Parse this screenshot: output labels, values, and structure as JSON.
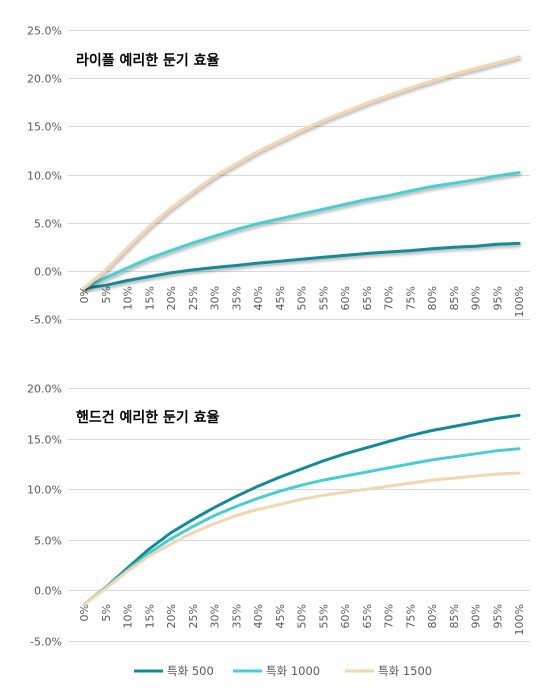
{
  "chart_data": [
    {
      "type": "line",
      "title": "라이플 예리한 둔기 효율",
      "categories": [
        "0%",
        "5%",
        "10%",
        "15%",
        "20%",
        "25%",
        "30%",
        "35%",
        "40%",
        "45%",
        "50%",
        "55%",
        "60%",
        "65%",
        "70%",
        "75%",
        "80%",
        "85%",
        "90%",
        "95%",
        "100%"
      ],
      "yticks": [
        "25.0%",
        "20.0%",
        "15.0%",
        "10.0%",
        "5.0%",
        "0.0%",
        "-5.0%"
      ],
      "ylim": [
        -5,
        25
      ],
      "grid": true,
      "series": [
        {
          "name": "특화 500",
          "color": "#138A97",
          "values": [
            -1.8,
            -1.5,
            -1.0,
            -0.6,
            -0.2,
            0.1,
            0.35,
            0.55,
            0.8,
            1.0,
            1.2,
            1.4,
            1.6,
            1.8,
            1.95,
            2.1,
            2.3,
            2.45,
            2.55,
            2.75,
            2.85
          ]
        },
        {
          "name": "특화 1000",
          "color": "#48CED2",
          "values": [
            -1.8,
            -0.7,
            0.3,
            1.3,
            2.1,
            2.9,
            3.6,
            4.3,
            4.9,
            5.4,
            5.9,
            6.4,
            6.9,
            7.4,
            7.8,
            8.3,
            8.75,
            9.1,
            9.45,
            9.85,
            10.2
          ]
        },
        {
          "name": "특화 1500",
          "color": "#F3D5B0",
          "values": [
            -1.8,
            0.1,
            2.4,
            4.6,
            6.5,
            8.2,
            9.8,
            11.1,
            12.4,
            13.5,
            14.6,
            15.6,
            16.5,
            17.4,
            18.2,
            19.0,
            19.7,
            20.4,
            21.0,
            21.6,
            22.2
          ]
        }
      ]
    },
    {
      "type": "line",
      "title": "핸드건 예리한 둔기 효율",
      "categories": [
        "0%",
        "5%",
        "10%",
        "15%",
        "20%",
        "25%",
        "30%",
        "35%",
        "40%",
        "45%",
        "50%",
        "55%",
        "60%",
        "65%",
        "70%",
        "75%",
        "80%",
        "85%",
        "90%",
        "95%",
        "100%"
      ],
      "yticks": [
        "20.0%",
        "15.0%",
        "10.0%",
        "5.0%",
        "0.0%",
        "-5.0%"
      ],
      "ylim": [
        -5,
        20
      ],
      "grid": true,
      "series": [
        {
          "name": "특화 500",
          "color": "#138A97",
          "values": [
            -1.4,
            0.3,
            2.2,
            4.1,
            5.7,
            7.0,
            8.2,
            9.3,
            10.3,
            11.2,
            12.0,
            12.8,
            13.5,
            14.1,
            14.7,
            15.3,
            15.8,
            16.2,
            16.6,
            17.0,
            17.3
          ]
        },
        {
          "name": "특화 1000",
          "color": "#48CED2",
          "values": [
            -1.4,
            0.3,
            2.0,
            3.7,
            5.1,
            6.3,
            7.4,
            8.3,
            9.1,
            9.8,
            10.4,
            10.9,
            11.3,
            11.7,
            12.1,
            12.5,
            12.9,
            13.2,
            13.5,
            13.8,
            14.0
          ]
        },
        {
          "name": "특화 1500",
          "color": "#F3D5B0",
          "values": [
            -1.4,
            0.2,
            1.9,
            3.4,
            4.6,
            5.7,
            6.6,
            7.4,
            8.0,
            8.5,
            9.0,
            9.4,
            9.7,
            10.0,
            10.3,
            10.6,
            10.9,
            11.1,
            11.3,
            11.5,
            11.6
          ]
        }
      ]
    }
  ],
  "legend": {
    "items": [
      {
        "label": "특화 500",
        "color": "#138A97"
      },
      {
        "label": "특화 1000",
        "color": "#48CED2"
      },
      {
        "label": "특화 1500",
        "color": "#F3D5B0"
      }
    ]
  }
}
